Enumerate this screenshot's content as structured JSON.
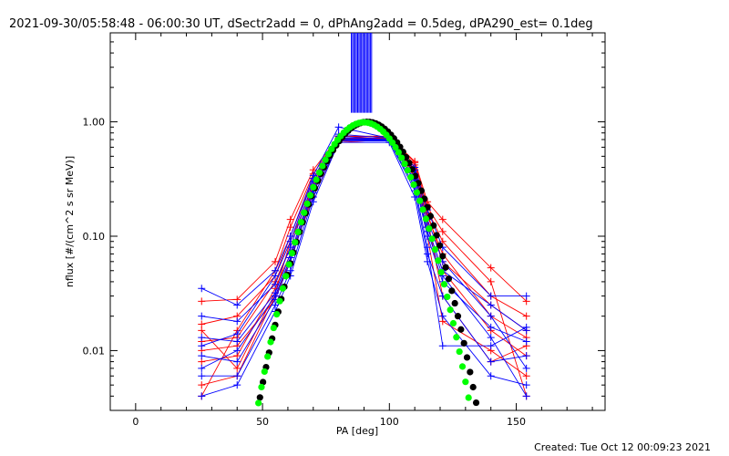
{
  "title": "2021-09-30/05:58:48 - 06:00:30 UT, dSectr2add = 0, dPhAng2add = 0.5deg, dPA290_est=  0.1deg",
  "footer": "Created: Tue Oct 12 00:09:23 2021",
  "colors": {
    "red": "#ff0000",
    "blue": "#0000ff",
    "black": "#000000",
    "green": "#00ff00"
  },
  "chart_data": {
    "type": "line",
    "scale": {
      "x": "linear",
      "y": "log"
    },
    "xlabel": "PA [deg]",
    "ylabel": "nflux [#/(cm^2 s sr MeV)]",
    "xlim": [
      -10,
      185
    ],
    "ylim": [
      0.003,
      6
    ],
    "xticks": [
      {
        "v": 0,
        "label": "0"
      },
      {
        "v": 50,
        "label": "50"
      },
      {
        "v": 100,
        "label": "100"
      },
      {
        "v": 150,
        "label": "150"
      }
    ],
    "yticks": [
      {
        "v": 1,
        "label": "1.00"
      },
      {
        "v": 0.1,
        "label": "0.10"
      },
      {
        "v": 0.01,
        "label": "0.01"
      }
    ],
    "series": [
      {
        "color": "red",
        "values": [
          [
            26,
            0.027
          ],
          [
            40,
            0.028
          ],
          [
            55,
            0.06
          ],
          [
            61,
            0.14
          ],
          [
            70,
            0.38
          ],
          [
            80,
            0.74
          ],
          [
            100,
            0.74
          ],
          [
            110,
            0.45
          ],
          [
            115,
            0.2
          ],
          [
            121,
            0.14
          ],
          [
            140,
            0.053
          ],
          [
            154,
            0.027
          ]
        ]
      },
      {
        "color": "red",
        "values": [
          [
            26,
            0.017
          ],
          [
            40,
            0.02
          ],
          [
            55,
            0.045
          ],
          [
            61,
            0.1
          ],
          [
            70,
            0.32
          ],
          [
            80,
            0.7
          ],
          [
            100,
            0.72
          ],
          [
            110,
            0.4
          ],
          [
            115,
            0.17
          ],
          [
            121,
            0.09
          ],
          [
            140,
            0.03
          ],
          [
            154,
            0.02
          ]
        ]
      },
      {
        "color": "red",
        "values": [
          [
            26,
            0.012
          ],
          [
            40,
            0.013
          ],
          [
            55,
            0.04
          ],
          [
            61,
            0.08
          ],
          [
            70,
            0.3
          ],
          [
            80,
            0.68
          ],
          [
            100,
            0.74
          ],
          [
            110,
            0.42
          ],
          [
            115,
            0.15
          ],
          [
            121,
            0.07
          ],
          [
            140,
            0.02
          ],
          [
            154,
            0.013
          ]
        ]
      },
      {
        "color": "red",
        "values": [
          [
            26,
            0.008
          ],
          [
            40,
            0.009
          ],
          [
            55,
            0.035
          ],
          [
            61,
            0.07
          ],
          [
            70,
            0.28
          ],
          [
            80,
            0.72
          ],
          [
            100,
            0.72
          ],
          [
            110,
            0.38
          ],
          [
            115,
            0.12
          ],
          [
            121,
            0.05
          ],
          [
            140,
            0.015
          ],
          [
            154,
            0.009
          ]
        ]
      },
      {
        "color": "red",
        "values": [
          [
            26,
            0.005
          ],
          [
            40,
            0.006
          ],
          [
            55,
            0.03
          ],
          [
            61,
            0.06
          ],
          [
            70,
            0.25
          ],
          [
            80,
            0.7
          ],
          [
            100,
            0.7
          ],
          [
            110,
            0.36
          ],
          [
            115,
            0.1
          ],
          [
            121,
            0.018
          ],
          [
            140,
            0.01
          ],
          [
            154,
            0.006
          ]
        ]
      },
      {
        "color": "red",
        "values": [
          [
            26,
            0.004
          ],
          [
            40,
            0.015
          ],
          [
            55,
            0.05
          ],
          [
            61,
            0.12
          ],
          [
            70,
            0.35
          ],
          [
            80,
            0.75
          ],
          [
            100,
            0.75
          ],
          [
            110,
            0.44
          ],
          [
            115,
            0.18
          ],
          [
            121,
            0.11
          ],
          [
            140,
            0.04
          ],
          [
            154,
            0.004
          ]
        ]
      },
      {
        "color": "red",
        "values": [
          [
            26,
            0.01
          ],
          [
            40,
            0.011
          ],
          [
            55,
            0.028
          ],
          [
            61,
            0.065
          ],
          [
            70,
            0.22
          ],
          [
            80,
            0.66
          ],
          [
            100,
            0.7
          ],
          [
            110,
            0.33
          ],
          [
            115,
            0.14
          ],
          [
            121,
            0.03
          ],
          [
            140,
            0.008
          ],
          [
            154,
            0.011
          ]
        ]
      },
      {
        "color": "red",
        "values": [
          [
            26,
            0.015
          ],
          [
            40,
            0.007
          ],
          [
            55,
            0.032
          ],
          [
            61,
            0.09
          ],
          [
            70,
            0.27
          ],
          [
            80,
            0.69
          ],
          [
            100,
            0.71
          ],
          [
            110,
            0.37
          ],
          [
            115,
            0.16
          ],
          [
            121,
            0.06
          ],
          [
            140,
            0.025
          ],
          [
            154,
            0.015
          ]
        ]
      },
      {
        "color": "blue",
        "values": [
          [
            26,
            0.035
          ],
          [
            40,
            0.025
          ],
          [
            55,
            0.05
          ],
          [
            61,
            0.1
          ],
          [
            70,
            0.34
          ],
          [
            80,
            0.9
          ],
          [
            100,
            0.72
          ],
          [
            110,
            0.4
          ],
          [
            115,
            0.17
          ],
          [
            121,
            0.08
          ],
          [
            140,
            0.03
          ],
          [
            154,
            0.03
          ]
        ]
      },
      {
        "color": "blue",
        "values": [
          [
            26,
            0.02
          ],
          [
            40,
            0.018
          ],
          [
            55,
            0.038
          ],
          [
            61,
            0.08
          ],
          [
            70,
            0.3
          ],
          [
            80,
            0.75
          ],
          [
            100,
            0.7
          ],
          [
            110,
            0.35
          ],
          [
            115,
            0.12
          ],
          [
            121,
            0.05
          ],
          [
            140,
            0.025
          ],
          [
            154,
            0.015
          ]
        ]
      },
      {
        "color": "blue",
        "values": [
          [
            26,
            0.013
          ],
          [
            40,
            0.012
          ],
          [
            55,
            0.032
          ],
          [
            61,
            0.07
          ],
          [
            70,
            0.27
          ],
          [
            80,
            0.72
          ],
          [
            100,
            0.7
          ],
          [
            110,
            0.3
          ],
          [
            115,
            0.1
          ],
          [
            121,
            0.04
          ],
          [
            140,
            0.016
          ],
          [
            154,
            0.012
          ]
        ]
      },
      {
        "color": "blue",
        "values": [
          [
            26,
            0.009
          ],
          [
            40,
            0.008
          ],
          [
            55,
            0.028
          ],
          [
            61,
            0.06
          ],
          [
            70,
            0.24
          ],
          [
            80,
            0.7
          ],
          [
            100,
            0.68
          ],
          [
            110,
            0.27
          ],
          [
            115,
            0.08
          ],
          [
            121,
            0.011
          ],
          [
            140,
            0.011
          ],
          [
            154,
            0.016
          ]
        ]
      },
      {
        "color": "blue",
        "values": [
          [
            26,
            0.006
          ],
          [
            40,
            0.006
          ],
          [
            55,
            0.025
          ],
          [
            61,
            0.05
          ],
          [
            70,
            0.22
          ],
          [
            80,
            0.68
          ],
          [
            100,
            0.68
          ],
          [
            110,
            0.25
          ],
          [
            115,
            0.07
          ],
          [
            121,
            0.03
          ],
          [
            140,
            0.008
          ],
          [
            154,
            0.009
          ]
        ]
      },
      {
        "color": "blue",
        "values": [
          [
            26,
            0.004
          ],
          [
            40,
            0.005
          ],
          [
            55,
            0.022
          ],
          [
            61,
            0.045
          ],
          [
            70,
            0.2
          ],
          [
            80,
            0.66
          ],
          [
            100,
            0.66
          ],
          [
            110,
            0.22
          ],
          [
            115,
            0.06
          ],
          [
            121,
            0.02
          ],
          [
            140,
            0.006
          ],
          [
            154,
            0.005
          ]
        ]
      },
      {
        "color": "blue",
        "values": [
          [
            26,
            0.011
          ],
          [
            40,
            0.014
          ],
          [
            55,
            0.045
          ],
          [
            61,
            0.09
          ],
          [
            70,
            0.32
          ],
          [
            80,
            0.78
          ],
          [
            100,
            0.72
          ],
          [
            110,
            0.38
          ],
          [
            115,
            0.14
          ],
          [
            121,
            0.06
          ],
          [
            140,
            0.02
          ],
          [
            154,
            0.007
          ]
        ]
      },
      {
        "color": "blue",
        "values": [
          [
            26,
            0.007
          ],
          [
            40,
            0.01
          ],
          [
            55,
            0.03
          ],
          [
            61,
            0.065
          ],
          [
            70,
            0.26
          ],
          [
            80,
            0.71
          ],
          [
            100,
            0.69
          ],
          [
            110,
            0.31
          ],
          [
            115,
            0.11
          ],
          [
            121,
            0.045
          ],
          [
            140,
            0.013
          ],
          [
            154,
            0.004
          ]
        ]
      }
    ],
    "model_curves": [
      {
        "color": "black",
        "peak_pa": 91,
        "peak_value": 1.0,
        "width_deg": 18,
        "range": [
          39,
          137
        ]
      },
      {
        "color": "green",
        "peak_pa": 90,
        "peak_value": 0.99,
        "width_deg": 17.5,
        "range": [
          40,
          136
        ]
      }
    ],
    "peak_band": {
      "color": "blue",
      "pa_range": [
        85,
        93
      ]
    }
  }
}
